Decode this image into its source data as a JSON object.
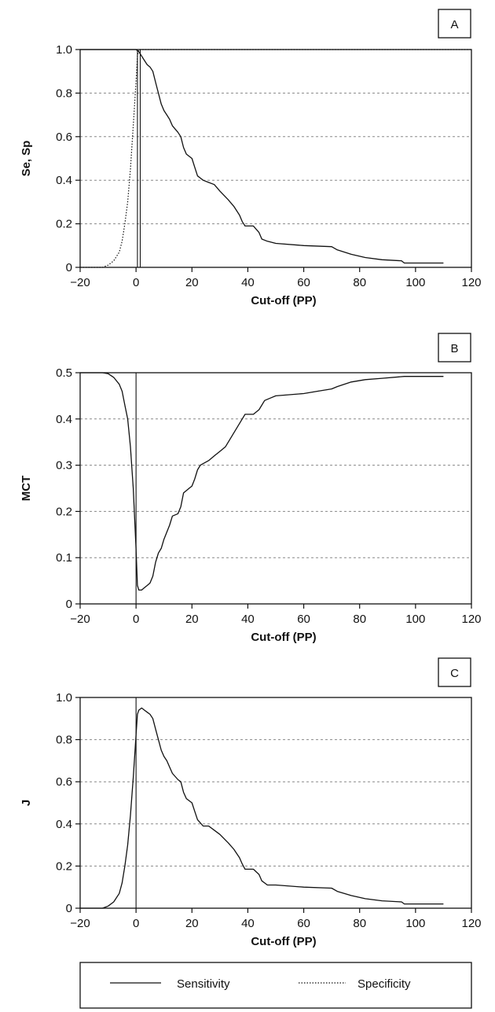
{
  "chart_data": [
    {
      "type": "line",
      "panel_label": "A",
      "xlabel": "Cut-off (PP)",
      "ylabel": "Se, Sp",
      "xlim": [
        -20,
        120
      ],
      "ylim": [
        0,
        1.0
      ],
      "x_ticks": [
        -20,
        0,
        20,
        40,
        60,
        80,
        100,
        120
      ],
      "x_tick_labels": [
        "−20",
        "0",
        "20",
        "40",
        "60",
        "80",
        "100",
        "120"
      ],
      "y_ticks": [
        0,
        0.2,
        0.4,
        0.6,
        0.8,
        1.0
      ],
      "y_tick_labels": [
        "0",
        "0.2",
        "0.4",
        "0.6",
        "0.8",
        "1.0"
      ],
      "grid": "horizontal-dashed",
      "vertical_lines": [
        0.5,
        1.5
      ],
      "series": [
        {
          "name": "Sensitivity",
          "style": "solid",
          "points": [
            [
              -20,
              1.0
            ],
            [
              0,
              1.0
            ],
            [
              1,
              0.99
            ],
            [
              2,
              0.97
            ],
            [
              3,
              0.95
            ],
            [
              4,
              0.93
            ],
            [
              5,
              0.92
            ],
            [
              6,
              0.9
            ],
            [
              7,
              0.85
            ],
            [
              8,
              0.8
            ],
            [
              9,
              0.75
            ],
            [
              10,
              0.72
            ],
            [
              11,
              0.7
            ],
            [
              12,
              0.68
            ],
            [
              13,
              0.65
            ],
            [
              15,
              0.62
            ],
            [
              16,
              0.6
            ],
            [
              17,
              0.55
            ],
            [
              18,
              0.52
            ],
            [
              20,
              0.5
            ],
            [
              21,
              0.46
            ],
            [
              22,
              0.42
            ],
            [
              24,
              0.4
            ],
            [
              26,
              0.39
            ],
            [
              28,
              0.38
            ],
            [
              30,
              0.35
            ],
            [
              33,
              0.31
            ],
            [
              35,
              0.28
            ],
            [
              37,
              0.24
            ],
            [
              38,
              0.21
            ],
            [
              39,
              0.19
            ],
            [
              42,
              0.19
            ],
            [
              44,
              0.16
            ],
            [
              45,
              0.13
            ],
            [
              47,
              0.12
            ],
            [
              50,
              0.11
            ],
            [
              60,
              0.1
            ],
            [
              70,
              0.095
            ],
            [
              72,
              0.08
            ],
            [
              77,
              0.06
            ],
            [
              82,
              0.045
            ],
            [
              88,
              0.035
            ],
            [
              95,
              0.03
            ],
            [
              96,
              0.02
            ],
            [
              110,
              0.02
            ]
          ]
        },
        {
          "name": "Specificity",
          "style": "dotted",
          "points": [
            [
              -20,
              0.0
            ],
            [
              -12,
              0.0
            ],
            [
              -10,
              0.01
            ],
            [
              -8,
              0.03
            ],
            [
              -6,
              0.07
            ],
            [
              -5,
              0.12
            ],
            [
              -4,
              0.2
            ],
            [
              -3,
              0.3
            ],
            [
              -2,
              0.45
            ],
            [
              -1,
              0.65
            ],
            [
              0,
              0.85
            ],
            [
              0.5,
              0.97
            ],
            [
              1,
              1.0
            ],
            [
              120,
              1.0
            ]
          ]
        }
      ]
    },
    {
      "type": "line",
      "panel_label": "B",
      "xlabel": "Cut-off (PP)",
      "ylabel": "MCT",
      "xlim": [
        -20,
        120
      ],
      "ylim": [
        0,
        0.5
      ],
      "x_ticks": [
        -20,
        0,
        20,
        40,
        60,
        80,
        100,
        120
      ],
      "x_tick_labels": [
        "−20",
        "0",
        "20",
        "40",
        "60",
        "80",
        "100",
        "120"
      ],
      "y_ticks": [
        0,
        0.1,
        0.2,
        0.3,
        0.4,
        0.5
      ],
      "y_tick_labels": [
        "0",
        "0.1",
        "0.2",
        "0.3",
        "0.4",
        "0.5"
      ],
      "grid": "horizontal-dashed",
      "vertical_lines": [
        0
      ],
      "series": [
        {
          "name": "MCT",
          "style": "solid",
          "points": [
            [
              -20,
              0.5
            ],
            [
              -12,
              0.5
            ],
            [
              -10,
              0.498
            ],
            [
              -8,
              0.49
            ],
            [
              -6,
              0.475
            ],
            [
              -5,
              0.46
            ],
            [
              -4,
              0.43
            ],
            [
              -3,
              0.4
            ],
            [
              -2,
              0.34
            ],
            [
              -1,
              0.25
            ],
            [
              0,
              0.12
            ],
            [
              0.5,
              0.04
            ],
            [
              1,
              0.03
            ],
            [
              2,
              0.03
            ],
            [
              3,
              0.035
            ],
            [
              4,
              0.04
            ],
            [
              5,
              0.045
            ],
            [
              6,
              0.06
            ],
            [
              7,
              0.09
            ],
            [
              8,
              0.11
            ],
            [
              9,
              0.12
            ],
            [
              10,
              0.14
            ],
            [
              12,
              0.17
            ],
            [
              13,
              0.19
            ],
            [
              15,
              0.195
            ],
            [
              16,
              0.21
            ],
            [
              17,
              0.24
            ],
            [
              19,
              0.25
            ],
            [
              20,
              0.255
            ],
            [
              21,
              0.27
            ],
            [
              22,
              0.29
            ],
            [
              23,
              0.3
            ],
            [
              26,
              0.31
            ],
            [
              28,
              0.32
            ],
            [
              30,
              0.33
            ],
            [
              32,
              0.34
            ],
            [
              34,
              0.36
            ],
            [
              36,
              0.38
            ],
            [
              38,
              0.4
            ],
            [
              39,
              0.41
            ],
            [
              42,
              0.41
            ],
            [
              44,
              0.42
            ],
            [
              46,
              0.44
            ],
            [
              48,
              0.445
            ],
            [
              50,
              0.45
            ],
            [
              60,
              0.455
            ],
            [
              65,
              0.46
            ],
            [
              70,
              0.465
            ],
            [
              72,
              0.47
            ],
            [
              77,
              0.48
            ],
            [
              82,
              0.485
            ],
            [
              88,
              0.488
            ],
            [
              96,
              0.492
            ],
            [
              110,
              0.492
            ]
          ]
        }
      ]
    },
    {
      "type": "line",
      "panel_label": "C",
      "xlabel": "Cut-off (PP)",
      "ylabel": "J",
      "xlim": [
        -20,
        120
      ],
      "ylim": [
        0,
        1.0
      ],
      "x_ticks": [
        -20,
        0,
        20,
        40,
        60,
        80,
        100,
        120
      ],
      "x_tick_labels": [
        "−20",
        "0",
        "20",
        "40",
        "60",
        "80",
        "100",
        "120"
      ],
      "y_ticks": [
        0,
        0.2,
        0.4,
        0.6,
        0.8,
        1.0
      ],
      "y_tick_labels": [
        "0",
        "0.2",
        "0.4",
        "0.6",
        "0.8",
        "1.0"
      ],
      "grid": "horizontal-dashed",
      "vertical_lines": [
        0
      ],
      "series": [
        {
          "name": "J",
          "style": "solid",
          "points": [
            [
              -20,
              0.0
            ],
            [
              -12,
              0.0
            ],
            [
              -10,
              0.01
            ],
            [
              -8,
              0.03
            ],
            [
              -6,
              0.07
            ],
            [
              -5,
              0.12
            ],
            [
              -4,
              0.2
            ],
            [
              -3,
              0.3
            ],
            [
              -2,
              0.44
            ],
            [
              -1,
              0.62
            ],
            [
              0,
              0.82
            ],
            [
              0.5,
              0.92
            ],
            [
              1,
              0.94
            ],
            [
              2,
              0.95
            ],
            [
              3,
              0.94
            ],
            [
              4,
              0.93
            ],
            [
              5,
              0.92
            ],
            [
              6,
              0.9
            ],
            [
              7,
              0.85
            ],
            [
              8,
              0.8
            ],
            [
              9,
              0.75
            ],
            [
              10,
              0.72
            ],
            [
              11,
              0.7
            ],
            [
              12,
              0.67
            ],
            [
              13,
              0.64
            ],
            [
              15,
              0.61
            ],
            [
              16,
              0.6
            ],
            [
              17,
              0.55
            ],
            [
              18,
              0.52
            ],
            [
              20,
              0.5
            ],
            [
              21,
              0.46
            ],
            [
              22,
              0.42
            ],
            [
              24,
              0.39
            ],
            [
              26,
              0.39
            ],
            [
              28,
              0.37
            ],
            [
              30,
              0.35
            ],
            [
              33,
              0.31
            ],
            [
              35,
              0.28
            ],
            [
              37,
              0.24
            ],
            [
              38,
              0.21
            ],
            [
              39,
              0.185
            ],
            [
              42,
              0.185
            ],
            [
              44,
              0.16
            ],
            [
              45,
              0.13
            ],
            [
              47,
              0.11
            ],
            [
              50,
              0.11
            ],
            [
              60,
              0.1
            ],
            [
              70,
              0.095
            ],
            [
              72,
              0.08
            ],
            [
              77,
              0.06
            ],
            [
              82,
              0.045
            ],
            [
              88,
              0.035
            ],
            [
              95,
              0.03
            ],
            [
              96,
              0.02
            ],
            [
              110,
              0.02
            ]
          ]
        }
      ]
    }
  ],
  "legend": {
    "placement": "bottom",
    "entries": [
      {
        "label": "Sensitivity",
        "style": "solid"
      },
      {
        "label": "Specificity",
        "style": "dotted"
      }
    ]
  }
}
